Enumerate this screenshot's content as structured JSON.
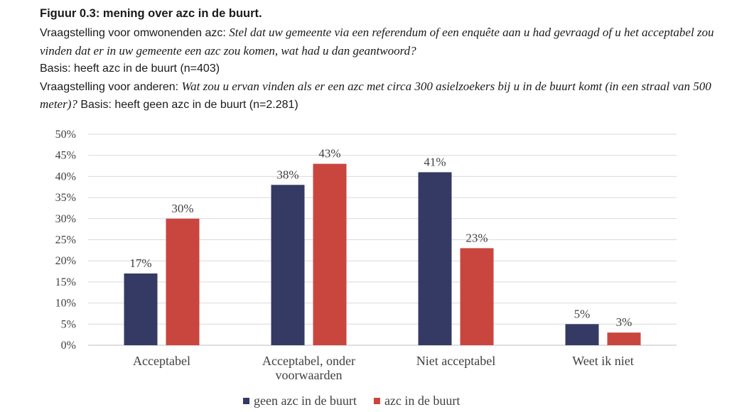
{
  "figure": {
    "title": "Figuur 0.3: mening over azc in de buurt.",
    "q1_label": "Vraagstelling voor omwonenden azc: ",
    "q1_text": "Stel dat uw gemeente via een referendum of een enquête aan u had gevraagd of u het acceptabel zou vinden dat er in uw gemeente een azc zou komen, wat had u dan geantwoord?",
    "q1_basis": "Basis: heeft azc in de buurt (n=403)",
    "q2_label": "Vraagstelling voor anderen: ",
    "q2_text": "Wat zou u ervan vinden als er een azc met circa 300 asielzoekers bij u in de buurt komt (in een straal van 500 meter)?",
    "q2_basis": " Basis: heeft geen azc in de buurt (n=2.281)"
  },
  "chart_data": {
    "type": "bar",
    "title": "",
    "xlabel": "",
    "ylabel": "",
    "ylim": [
      0,
      50
    ],
    "y_ticks": [
      0,
      5,
      10,
      15,
      20,
      25,
      30,
      35,
      40,
      45,
      50
    ],
    "y_tick_format": "%",
    "grid": true,
    "legend_position": "bottom-center",
    "categories": [
      [
        "Acceptabel"
      ],
      [
        "Acceptabel, onder",
        "voorwaarden"
      ],
      [
        "Niet acceptabel"
      ],
      [
        "Weet ik niet"
      ]
    ],
    "series": [
      {
        "name": "geen azc in de buurt",
        "color": "#343a64",
        "values": [
          17,
          38,
          41,
          5
        ],
        "labels": [
          "17%",
          "38%",
          "41%",
          "5%"
        ]
      },
      {
        "name": "azc in de buurt",
        "color": "#c9463f",
        "values": [
          30,
          43,
          23,
          3
        ],
        "labels": [
          "30%",
          "43%",
          "23%",
          "3%"
        ]
      }
    ]
  }
}
